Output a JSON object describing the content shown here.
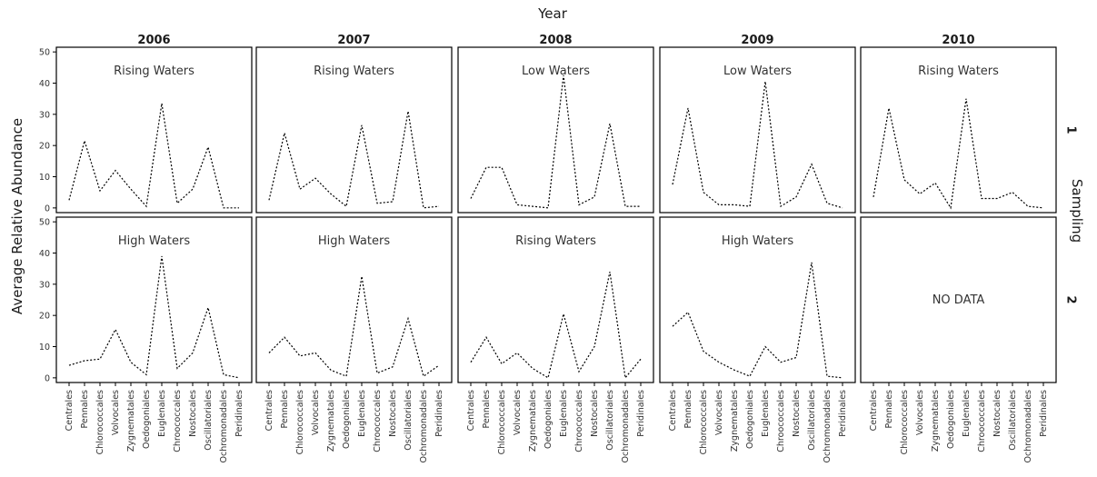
{
  "chart_data": {
    "type": "line",
    "title": "",
    "xlabel": "",
    "ylabel": "Average Relative Abundance",
    "column_facet_title": "Year",
    "row_facet_title": "Sampling",
    "columns": [
      "2006",
      "2007",
      "2008",
      "2009",
      "2010"
    ],
    "rows": [
      "1",
      "2"
    ],
    "categories": [
      "Centrales",
      "Pennales",
      "Chlorococcales",
      "Volvocales",
      "Zygnematales",
      "Oedogoniales",
      "Euglenales",
      "Chroococcales",
      "Nostocales",
      "Oscillatoriales",
      "Ochromonadales",
      "Peridinales"
    ],
    "yticks": [
      0,
      10,
      20,
      30,
      40,
      50
    ],
    "ylim": [
      -1.5,
      51.5
    ],
    "grid": false,
    "linestyle": "dotted",
    "line_color": "#000000",
    "panels": [
      {
        "row": "1",
        "column": "2006",
        "annotation": "Rising Waters",
        "values": [
          2.5,
          21.5,
          5.5,
          12,
          6,
          0.5,
          33.5,
          1.5,
          6,
          19.5,
          0,
          0
        ]
      },
      {
        "row": "1",
        "column": "2007",
        "annotation": "Rising Waters",
        "values": [
          2.5,
          24,
          6,
          9.5,
          4.5,
          0.5,
          26.5,
          1.5,
          2,
          31,
          0,
          0.5
        ]
      },
      {
        "row": "1",
        "column": "2008",
        "annotation": "Low Waters",
        "values": [
          3,
          13,
          13,
          1,
          0.5,
          0,
          42.5,
          1,
          3.5,
          27,
          0.5,
          0.5
        ]
      },
      {
        "row": "1",
        "column": "2009",
        "annotation": "Low Waters",
        "values": [
          7.5,
          32,
          5,
          1,
          1,
          0.5,
          40.5,
          0.5,
          3.5,
          14,
          1.5,
          0
        ]
      },
      {
        "row": "1",
        "column": "2010",
        "annotation": "Rising Waters",
        "values": [
          3.5,
          32,
          9,
          4.5,
          8,
          0,
          35,
          3,
          3,
          5,
          0.5,
          0
        ]
      },
      {
        "row": "2",
        "column": "2006",
        "annotation": "High Waters",
        "values": [
          4,
          5.5,
          6,
          15.5,
          5,
          1,
          39,
          3,
          8,
          22.5,
          1,
          0
        ]
      },
      {
        "row": "2",
        "column": "2007",
        "annotation": "High Waters",
        "values": [
          8,
          13,
          7,
          8,
          2.5,
          0.5,
          32.5,
          1.5,
          3.5,
          19,
          0.5,
          4
        ]
      },
      {
        "row": "2",
        "column": "2008",
        "annotation": "Rising Waters",
        "values": [
          5,
          13,
          4.5,
          8,
          3,
          0,
          20.5,
          2,
          10,
          34,
          0,
          6
        ]
      },
      {
        "row": "2",
        "column": "2009",
        "annotation": "High Waters",
        "values": [
          16.5,
          21,
          8.5,
          5,
          2.5,
          0.5,
          10,
          5,
          6.5,
          37,
          0.5,
          0
        ]
      },
      {
        "row": "2",
        "column": "2010",
        "annotation": "NO DATA",
        "values": []
      }
    ]
  }
}
